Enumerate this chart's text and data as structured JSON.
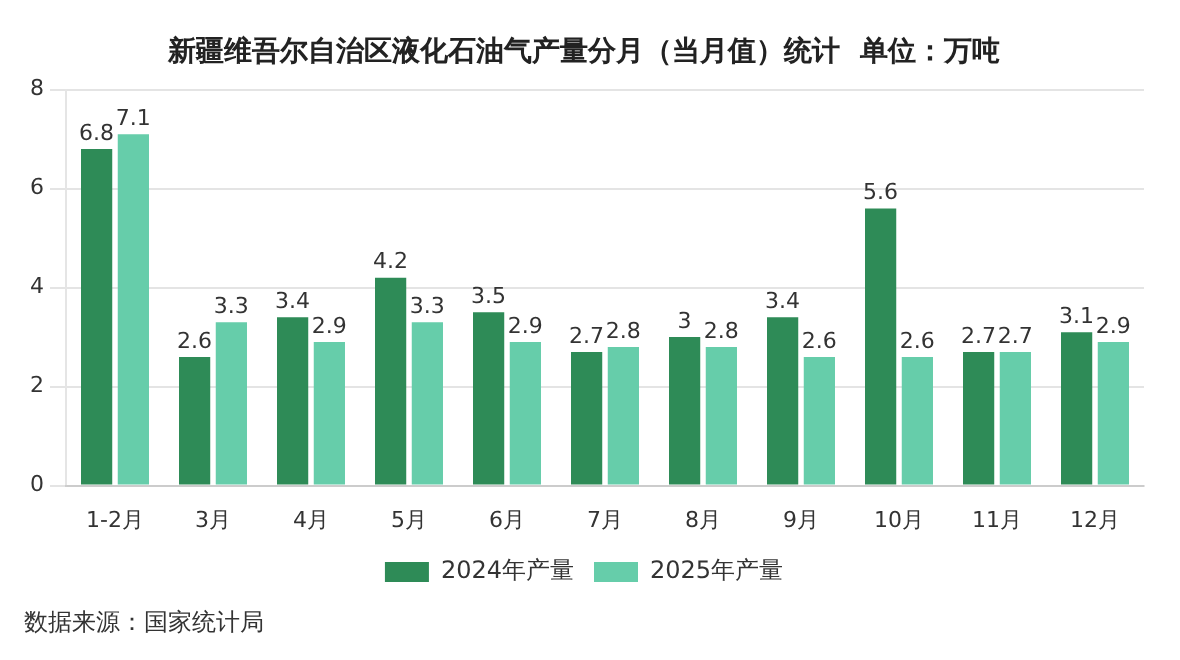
{
  "chart_data": {
    "type": "bar",
    "title": "新疆维吾尔自治区液化石油气产量分月（当月值）统计  单位：万吨",
    "categories": [
      "1-2月",
      "3月",
      "4月",
      "5月",
      "6月",
      "7月",
      "8月",
      "9月",
      "10月",
      "11月",
      "12月"
    ],
    "series": [
      {
        "name": "2024年产量",
        "color": "#2e8b57",
        "values": [
          6.8,
          2.6,
          3.4,
          4.2,
          3.5,
          2.7,
          3,
          3.4,
          5.6,
          2.7,
          3.1
        ]
      },
      {
        "name": "2025年产量",
        "color": "#66cdaa",
        "values": [
          7.1,
          3.3,
          2.9,
          3.3,
          2.9,
          2.8,
          2.8,
          2.6,
          2.6,
          2.7,
          2.9
        ]
      }
    ],
    "ylim": [
      0,
      8
    ],
    "yticks": [
      0,
      2,
      4,
      6,
      8
    ],
    "grid": "y",
    "legend": "bottom",
    "data_labels": true,
    "annotations": [
      "数据来源：国家统计局"
    ]
  }
}
